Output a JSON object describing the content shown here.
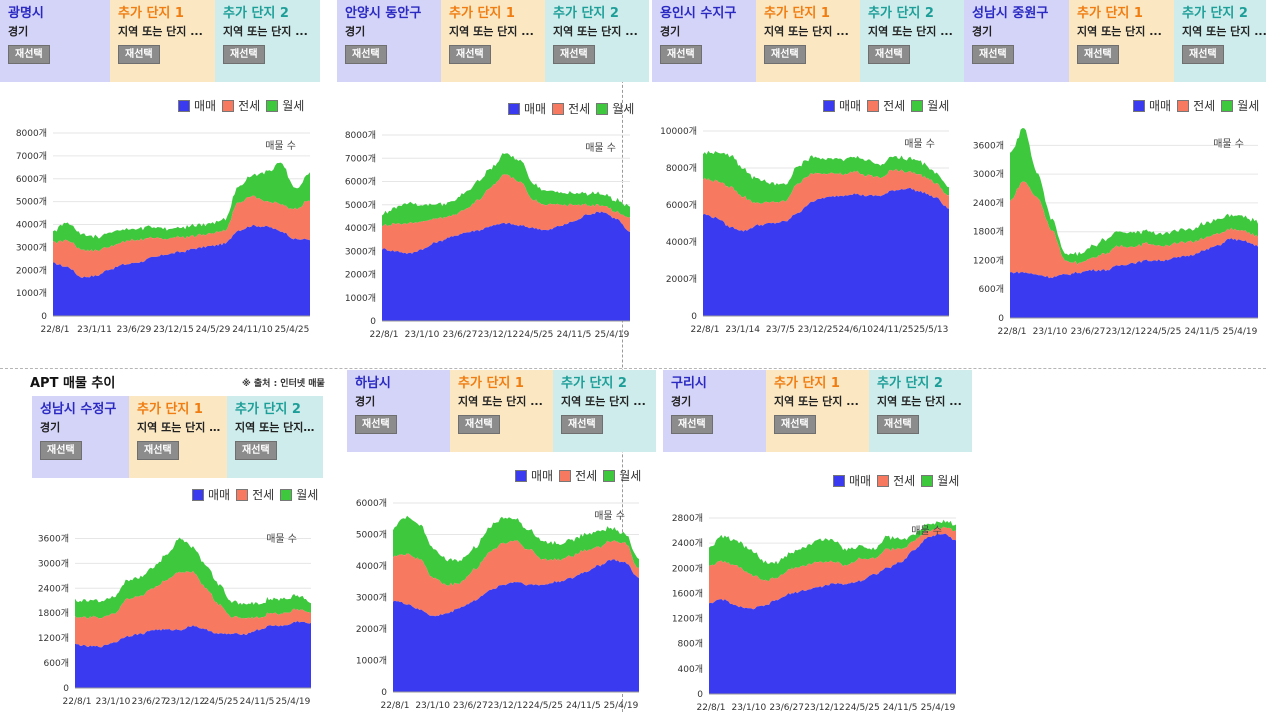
{
  "page": {
    "title": "APT 매물 추이",
    "source_note": "※ 출처 : 인터넷 매물"
  },
  "legend": {
    "sale": "매매",
    "jeonse": "전세",
    "monthly": "월세",
    "colors": {
      "sale": "#3a3af0",
      "jeonse": "#f77a60",
      "monthly": "#3ec83e"
    }
  },
  "extra1": {
    "title": "추가 단지 1",
    "subtitle": "지역 또는 단지 ..."
  },
  "extra2": {
    "title": "추가 단지 2",
    "subtitle": "지역 또는 단지 ..."
  },
  "reselect_label": "재선택",
  "series_label": "매물 수",
  "panels": [
    {
      "id": "gwangmyeong",
      "name": "광명시",
      "region": "경기"
    },
    {
      "id": "anyang-dongan",
      "name": "안양시 동안구",
      "region": "경기"
    },
    {
      "id": "yongin-suji",
      "name": "용인시 수지구",
      "region": "경기"
    },
    {
      "id": "seongnam-jungwon",
      "name": "성남시 중원구",
      "region": "경기"
    },
    {
      "id": "seongnam-sujeong",
      "name": "성남시 수정구",
      "region": "경기"
    },
    {
      "id": "hanam",
      "name": "하남시",
      "region": "경기"
    },
    {
      "id": "guri",
      "name": "구리시",
      "region": "경기"
    }
  ],
  "chart_data": [
    {
      "type": "area",
      "region": "광명시",
      "ylim": [
        0,
        8000
      ],
      "yticks": [
        "0",
        "1000개",
        "2000개",
        "3000개",
        "4000개",
        "5000개",
        "6000개",
        "7000개",
        "8000개"
      ],
      "xticks": [
        "22/8/1",
        "23/1/11",
        "23/6/29",
        "23/12/15",
        "24/5/29",
        "24/11/10",
        "25/4/25"
      ],
      "x": [
        "22/8/1",
        "22/10/1",
        "22/12/1",
        "23/2/1",
        "23/4/1",
        "23/6/1",
        "23/8/1",
        "23/10/1",
        "23/12/1",
        "24/2/1",
        "24/4/1",
        "24/6/1",
        "24/8/1",
        "24/10/1",
        "24/12/1",
        "25/2/1",
        "25/4/1",
        "25/6/1",
        "25/7/15"
      ],
      "series": [
        {
          "name": "매매",
          "values": [
            2300,
            2150,
            1700,
            1750,
            2050,
            2250,
            2350,
            2550,
            2700,
            2800,
            2950,
            3050,
            3150,
            3750,
            3950,
            3900,
            3700,
            3350,
            3350
          ]
        },
        {
          "name": "전세",
          "values": [
            900,
            1150,
            1200,
            1100,
            1000,
            1000,
            1000,
            850,
            700,
            650,
            550,
            550,
            550,
            1250,
            1300,
            1100,
            1200,
            1300,
            1750
          ]
        },
        {
          "name": "월세",
          "values": [
            500,
            800,
            700,
            600,
            600,
            500,
            500,
            500,
            450,
            450,
            450,
            450,
            500,
            700,
            900,
            1300,
            1800,
            900,
            1200
          ]
        }
      ]
    },
    {
      "type": "area",
      "region": "안양시 동안구",
      "ylim": [
        0,
        8000
      ],
      "yticks": [
        "0",
        "1000개",
        "2000개",
        "3000개",
        "4000개",
        "5000개",
        "6000개",
        "7000개",
        "8000개"
      ],
      "xticks": [
        "22/8/1",
        "23/1/10",
        "23/6/27",
        "23/12/12",
        "24/5/25",
        "24/11/5",
        "25/4/19"
      ],
      "x": [
        "22/8/1",
        "22/10/1",
        "22/12/1",
        "23/2/1",
        "23/4/1",
        "23/6/1",
        "23/8/1",
        "23/10/1",
        "23/12/1",
        "24/2/1",
        "24/4/1",
        "24/6/1",
        "24/8/1",
        "24/10/1",
        "24/12/1",
        "25/2/1",
        "25/4/1",
        "25/6/1",
        "25/7/15"
      ],
      "series": [
        {
          "name": "매매",
          "values": [
            3100,
            3000,
            2900,
            3100,
            3400,
            3600,
            3800,
            3900,
            4100,
            4200,
            4100,
            4000,
            3900,
            4100,
            4300,
            4600,
            4700,
            4400,
            3800
          ]
        },
        {
          "name": "전세",
          "values": [
            1000,
            1200,
            1300,
            1200,
            1000,
            900,
            1000,
            1300,
            1700,
            2100,
            1900,
            1200,
            1100,
            900,
            700,
            400,
            300,
            300,
            600
          ]
        },
        {
          "name": "월세",
          "values": [
            500,
            700,
            900,
            700,
            600,
            600,
            700,
            800,
            800,
            900,
            900,
            700,
            600,
            500,
            500,
            500,
            500,
            500,
            500
          ]
        }
      ]
    },
    {
      "type": "area",
      "region": "용인시 수지구",
      "ylim": [
        0,
        10000
      ],
      "yticks": [
        "0",
        "2000개",
        "4000개",
        "6000개",
        "8000개",
        "10000개"
      ],
      "xticks": [
        "22/8/1",
        "23/1/14",
        "23/7/5",
        "23/12/25",
        "24/6/10",
        "24/11/25",
        "25/5/13"
      ],
      "x": [
        "22/8/1",
        "22/10/1",
        "22/12/1",
        "23/2/1",
        "23/4/1",
        "23/6/1",
        "23/8/1",
        "23/10/1",
        "23/12/1",
        "24/2/1",
        "24/4/1",
        "24/6/1",
        "24/8/1",
        "24/10/1",
        "24/12/1",
        "25/2/1",
        "25/4/1",
        "25/6/1",
        "25/7/15"
      ],
      "series": [
        {
          "name": "매매",
          "values": [
            5500,
            5300,
            4800,
            4600,
            4900,
            5000,
            5100,
            5600,
            6200,
            6400,
            6500,
            6600,
            6500,
            6500,
            6800,
            6900,
            6700,
            6400,
            5800
          ]
        },
        {
          "name": "전세",
          "values": [
            1900,
            2000,
            2200,
            1800,
            1200,
            1100,
            1100,
            1600,
            1500,
            1300,
            1200,
            1200,
            1100,
            1000,
            1100,
            900,
            900,
            800,
            700
          ]
        },
        {
          "name": "월세",
          "values": [
            1400,
            1600,
            1700,
            1500,
            1300,
            1000,
            900,
            900,
            900,
            800,
            800,
            800,
            800,
            700,
            700,
            700,
            700,
            600,
            500
          ]
        }
      ]
    },
    {
      "type": "area",
      "region": "성남시 중원구",
      "ylim": [
        0,
        3900
      ],
      "yticks": [
        "0",
        "600개",
        "1200개",
        "1800개",
        "2400개",
        "3000개",
        "3600개"
      ],
      "xticks": [
        "22/8/1",
        "23/1/10",
        "23/6/27",
        "23/12/12",
        "24/5/25",
        "24/11/5",
        "25/4/19"
      ],
      "x": [
        "22/8/1",
        "22/10/1",
        "22/12/1",
        "23/2/1",
        "23/4/1",
        "23/6/1",
        "23/8/1",
        "23/10/1",
        "23/12/1",
        "24/2/1",
        "24/4/1",
        "24/6/1",
        "24/8/1",
        "24/10/1",
        "24/12/1",
        "25/2/1",
        "25/4/1",
        "25/6/1",
        "25/7/15"
      ],
      "series": [
        {
          "name": "매매",
          "values": [
            950,
            950,
            900,
            850,
            900,
            950,
            1000,
            1000,
            1100,
            1150,
            1200,
            1200,
            1250,
            1300,
            1400,
            1500,
            1650,
            1600,
            1500
          ]
        },
        {
          "name": "전세",
          "values": [
            1500,
            1900,
            1600,
            1000,
            300,
            200,
            250,
            350,
            400,
            350,
            350,
            300,
            300,
            300,
            250,
            250,
            200,
            200,
            200
          ]
        },
        {
          "name": "월세",
          "values": [
            1000,
            1100,
            500,
            250,
            150,
            200,
            250,
            300,
            300,
            300,
            250,
            250,
            250,
            250,
            300,
            300,
            300,
            300,
            300
          ]
        }
      ]
    },
    {
      "type": "area",
      "region": "성남시 수정구",
      "ylim": [
        0,
        3900
      ],
      "yticks": [
        "0",
        "600개",
        "1200개",
        "1800개",
        "2400개",
        "3000개",
        "3600개"
      ],
      "xticks": [
        "22/8/1",
        "23/1/10",
        "23/6/27",
        "23/12/12",
        "24/5/25",
        "24/11/5",
        "25/4/19"
      ],
      "x": [
        "22/8/1",
        "22/10/1",
        "22/12/1",
        "23/2/1",
        "23/4/1",
        "23/6/1",
        "23/8/1",
        "23/10/1",
        "23/12/1",
        "24/2/1",
        "24/4/1",
        "24/6/1",
        "24/8/1",
        "24/10/1",
        "24/12/1",
        "25/2/1",
        "25/4/1",
        "25/6/1",
        "25/7/15"
      ],
      "series": [
        {
          "name": "매매",
          "values": [
            1050,
            1000,
            1000,
            1100,
            1250,
            1300,
            1400,
            1400,
            1400,
            1500,
            1400,
            1300,
            1300,
            1300,
            1400,
            1500,
            1500,
            1600,
            1550
          ]
        },
        {
          "name": "전세",
          "values": [
            650,
            700,
            700,
            700,
            900,
            900,
            1000,
            1200,
            1400,
            1300,
            1000,
            700,
            400,
            400,
            300,
            300,
            300,
            300,
            250
          ]
        },
        {
          "name": "월세",
          "values": [
            400,
            400,
            400,
            400,
            450,
            450,
            500,
            600,
            800,
            600,
            550,
            500,
            350,
            350,
            350,
            350,
            350,
            350,
            250
          ]
        }
      ]
    },
    {
      "type": "area",
      "region": "하남시",
      "ylim": [
        0,
        6000
      ],
      "yticks": [
        "0",
        "1000개",
        "2000개",
        "3000개",
        "4000개",
        "5000개",
        "6000개"
      ],
      "xticks": [
        "22/8/1",
        "23/1/10",
        "23/6/27",
        "23/12/12",
        "24/5/25",
        "24/11/5",
        "25/4/19"
      ],
      "x": [
        "22/8/1",
        "22/10/1",
        "22/12/1",
        "23/2/1",
        "23/4/1",
        "23/6/1",
        "23/8/1",
        "23/10/1",
        "23/12/1",
        "24/2/1",
        "24/4/1",
        "24/6/1",
        "24/8/1",
        "24/10/1",
        "24/12/1",
        "25/2/1",
        "25/4/1",
        "25/6/1",
        "25/7/15"
      ],
      "series": [
        {
          "name": "매매",
          "values": [
            2900,
            2800,
            2600,
            2400,
            2500,
            2700,
            2900,
            3200,
            3400,
            3500,
            3400,
            3400,
            3500,
            3600,
            3800,
            4000,
            4200,
            4100,
            3600
          ]
        },
        {
          "name": "전세",
          "values": [
            1400,
            1600,
            1600,
            1200,
            900,
            800,
            1000,
            1200,
            1300,
            1300,
            1100,
            800,
            700,
            700,
            700,
            600,
            600,
            600,
            300
          ]
        },
        {
          "name": "월세",
          "values": [
            900,
            1200,
            1100,
            900,
            800,
            700,
            700,
            800,
            800,
            700,
            600,
            600,
            500,
            500,
            500,
            500,
            400,
            300,
            300
          ]
        }
      ]
    },
    {
      "type": "area",
      "region": "구리시",
      "ylim": [
        0,
        2800
      ],
      "yticks": [
        "0",
        "400개",
        "800개",
        "1200개",
        "1600개",
        "2000개",
        "2400개",
        "2800개"
      ],
      "xticks": [
        "22/8/1",
        "23/1/10",
        "23/6/27",
        "23/12/12",
        "24/5/25",
        "24/11/5",
        "25/4/19"
      ],
      "x": [
        "22/8/1",
        "22/10/1",
        "22/12/1",
        "23/2/1",
        "23/4/1",
        "23/6/1",
        "23/8/1",
        "23/10/1",
        "23/12/1",
        "24/2/1",
        "24/4/1",
        "24/6/1",
        "24/8/1",
        "24/10/1",
        "24/12/1",
        "25/2/1",
        "25/4/1",
        "25/6/1",
        "25/7/15"
      ],
      "series": [
        {
          "name": "매매",
          "values": [
            1450,
            1500,
            1400,
            1350,
            1400,
            1500,
            1600,
            1650,
            1700,
            1750,
            1750,
            1800,
            1900,
            2000,
            2100,
            2300,
            2500,
            2550,
            2450
          ]
        },
        {
          "name": "전세",
          "values": [
            600,
            600,
            650,
            550,
            400,
            350,
            400,
            400,
            400,
            350,
            300,
            350,
            250,
            300,
            200,
            150,
            100,
            100,
            150
          ]
        },
        {
          "name": "월세",
          "values": [
            300,
            400,
            400,
            400,
            300,
            250,
            250,
            300,
            350,
            350,
            250,
            200,
            150,
            200,
            150,
            100,
            100,
            100,
            100
          ]
        }
      ]
    }
  ]
}
